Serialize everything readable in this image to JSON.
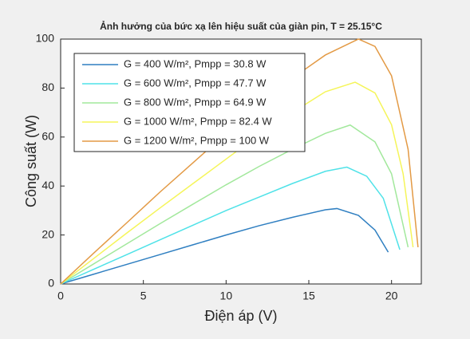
{
  "chart_data": {
    "type": "line",
    "title": "Ảnh hưởng của bức xạ lên hiệu suất của giàn pin, T = 25.15°C",
    "xlabel": "Điện áp (V)",
    "ylabel": "Công suất (W)",
    "xlim": [
      0,
      21.8
    ],
    "ylim": [
      0,
      100
    ],
    "xticks": [
      0,
      5,
      10,
      15,
      20
    ],
    "yticks": [
      0,
      20,
      40,
      60,
      80,
      100
    ],
    "grid": false,
    "legend": "upper left",
    "series": [
      {
        "name": "G = 400 W/m², Pmpp = 30.8 W",
        "color": "#2f7fc1",
        "x": [
          0,
          2,
          4,
          6,
          8,
          10,
          12,
          14,
          16,
          16.7,
          18,
          19,
          19.8
        ],
        "values": [
          0,
          4,
          8,
          12,
          16,
          20,
          23.8,
          27.2,
          30.3,
          30.8,
          28,
          22,
          13
        ]
      },
      {
        "name": "G = 600 W/m², Pmpp = 47.7 W",
        "color": "#4fe2e8",
        "x": [
          0,
          2,
          4,
          6,
          8,
          10,
          12,
          14,
          16,
          17.3,
          18.5,
          19.5,
          20.5
        ],
        "values": [
          0,
          6,
          12,
          18,
          24,
          30,
          35.5,
          41,
          46,
          47.7,
          44,
          35,
          14
        ]
      },
      {
        "name": "G = 800 W/m², Pmpp = 64.9 W",
        "color": "#a2e89c",
        "x": [
          0,
          2,
          4,
          6,
          8,
          10,
          12,
          14,
          16,
          17.5,
          19,
          20,
          21
        ],
        "values": [
          0,
          8.2,
          16.4,
          24.6,
          32.6,
          40.5,
          48,
          55,
          61.5,
          64.9,
          58,
          45,
          15
        ]
      },
      {
        "name": "G = 1000 W/m², Pmpp = 82.4 W",
        "color": "#f5f55a",
        "x": [
          0,
          2,
          4,
          6,
          8,
          10,
          12,
          14,
          16,
          17.8,
          19,
          20,
          20.7,
          21.3
        ],
        "values": [
          0,
          10.4,
          20.8,
          31,
          41,
          51,
          61,
          70,
          78.5,
          82.4,
          78,
          65,
          45,
          15
        ]
      },
      {
        "name": "G = 1200 W/m², Pmpp = 100 W",
        "color": "#e39a45",
        "x": [
          0,
          2,
          4,
          6,
          8,
          10,
          12,
          14,
          16,
          18,
          19,
          20,
          21,
          21.6
        ],
        "values": [
          0,
          12.6,
          25,
          37.5,
          49.5,
          61.5,
          73,
          84,
          93.5,
          100,
          97,
          85,
          55,
          15
        ]
      }
    ]
  }
}
